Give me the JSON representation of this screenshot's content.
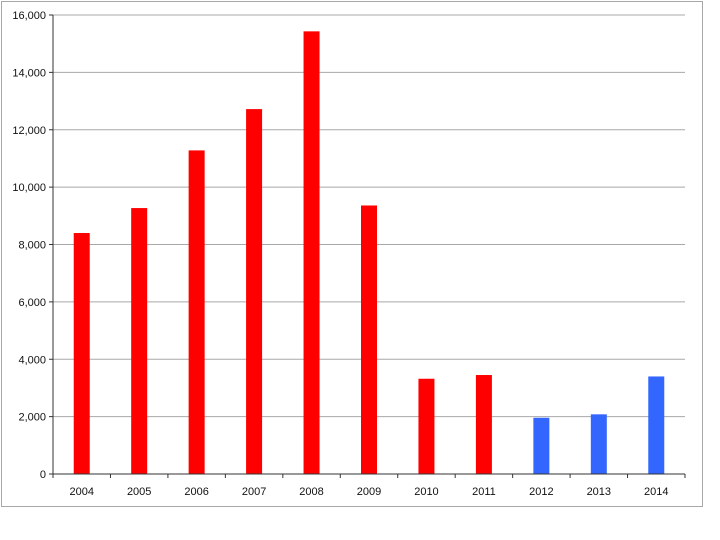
{
  "chart_data": {
    "type": "bar",
    "title": "",
    "xlabel": "",
    "ylabel": "",
    "categories": [
      "2004",
      "2005",
      "2006",
      "2007",
      "2008",
      "2009",
      "2010",
      "2011",
      "2012",
      "2013",
      "2014"
    ],
    "values": [
      8400,
      9270,
      11280,
      12720,
      15430,
      9360,
      3320,
      3450,
      1960,
      2080,
      3400
    ],
    "bar_colors": [
      "#ff0000",
      "#ff0000",
      "#ff0000",
      "#ff0000",
      "#ff0000",
      "#ff0000",
      "#ff0000",
      "#ff0000",
      "#3366ff",
      "#3366ff",
      "#3366ff"
    ],
    "ylim": [
      0,
      16000
    ],
    "y_ticks": [
      0,
      2000,
      4000,
      6000,
      8000,
      10000,
      12000,
      14000,
      16000
    ],
    "y_tick_labels": [
      "0",
      "2,000",
      "4,000",
      "6,000",
      "8,000",
      "10,000",
      "12,000",
      "14,000",
      "16,000"
    ],
    "grid": true,
    "legend": "none"
  }
}
